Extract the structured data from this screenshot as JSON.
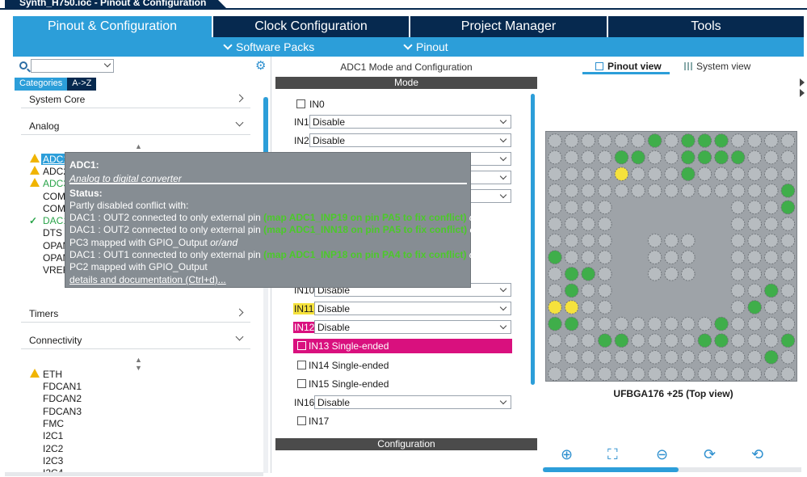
{
  "window": {
    "title": "Synth_H750.ioc - Pinout & Configuration"
  },
  "main_tabs": [
    {
      "label": "Pinout & Configuration",
      "active": true
    },
    {
      "label": "Clock Configuration"
    },
    {
      "label": "Project Manager"
    },
    {
      "label": "Tools"
    }
  ],
  "subbar": {
    "software_packs": "Software Packs",
    "pinout": "Pinout"
  },
  "left": {
    "categories_tab": "Categories",
    "az_tab": "A->Z",
    "system_core": "System Core",
    "analog": "Analog",
    "timers": "Timers",
    "connectivity": "Connectivity",
    "analog_items": [
      "ADC1",
      "ADC2",
      "ADC3",
      "COMP1",
      "COMP2",
      "DAC1",
      "DTS",
      "OPAMP1",
      "OPAMP2",
      "VREFBUF"
    ],
    "connectivity_items": [
      "ETH",
      "FDCAN1",
      "FDCAN2",
      "FDCAN3",
      "FMC",
      "I2C1",
      "I2C2",
      "I2C3",
      "I2C4"
    ]
  },
  "middle": {
    "title": "ADC1 Mode and Configuration",
    "mode_header": "Mode",
    "config_header": "Configuration",
    "rows": [
      {
        "label": "IN0",
        "type": "checkbox"
      },
      {
        "label": "IN1",
        "value": "Disable"
      },
      {
        "label": "IN2",
        "value": "Disable"
      },
      {
        "label": "IN10",
        "value": "Disable"
      },
      {
        "label": "IN11",
        "value": "Disable"
      },
      {
        "label": "IN12",
        "value": "Disable"
      },
      {
        "label": "IN13 Single-ended",
        "type": "checkbox"
      },
      {
        "label": "IN14 Single-ended",
        "type": "checkbox"
      },
      {
        "label": "IN15 Single-ended",
        "type": "checkbox"
      },
      {
        "label": "IN16",
        "value": "Disable"
      },
      {
        "label": "IN17",
        "type": "checkbox"
      }
    ]
  },
  "right": {
    "pinout_view": "Pinout view",
    "system_view": "System view",
    "package_label": "UFBGA176 +25 (Top view)"
  },
  "tooltip": {
    "title": "ADC1:",
    "subtitle": "Analog to digital converter",
    "status_label": "Status:",
    "status_line": "Partly disabled conflict with:",
    "c1_text": "DAC1 : OUT2 connected to only external pin",
    "c1_hint": "(map ADC1_INP19 on pin PA5 to fix conflict)",
    "c2_text": "DAC1 : OUT2 connected to only external pin",
    "c2_hint": "(map ADC1_INN18 on pin PA5 to fix conflict)",
    "or_and": "or/and",
    "pc3": "PC3 mapped with GPIO_Output",
    "c3_text": "DAC1 : OUT1 connected to only external pin",
    "c3_hint": "(map ADC1_INP18 on pin PA4 to fix conflict)",
    "pc2": "PC2 mapped with GPIO_Output",
    "link": "details and documentation (Ctrl+d)..."
  },
  "colors": {
    "nav_dark": "#06294f",
    "accent_blue": "#2c9ed9",
    "warning": "#f0b400",
    "ok_green": "#2aa44a",
    "signal_magenta": "#d9107e",
    "signal_yellow": "#f6e23c",
    "pin_green": "#3fae4a",
    "pin_grey": "#b7bcc0"
  }
}
